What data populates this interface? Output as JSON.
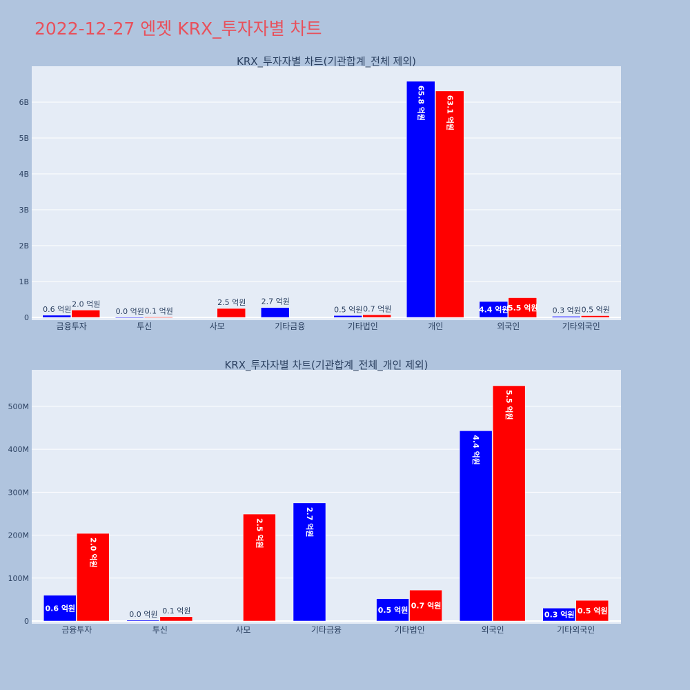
{
  "page_title": "2022-12-27 엔젯 KRX_투자자별 차트",
  "colors": {
    "series_a": "#0000ff",
    "series_b": "#ff0000",
    "plot_bg": "#e5ecf6",
    "page_bg": "#b0c4de",
    "title": "#e8505b"
  },
  "chart_data": [
    {
      "type": "bar",
      "title": "KRX_투자자별 차트(기관합계_전체 제외)",
      "categories": [
        "금융투자",
        "투신",
        "사모",
        "기타금융",
        "기타법인",
        "개인",
        "외국인",
        "기타외국인"
      ],
      "ylim": [
        0,
        7000000000
      ],
      "yticks": [
        0,
        1000000000,
        2000000000,
        3000000000,
        4000000000,
        5000000000,
        6000000000
      ],
      "ytick_labels": [
        "0",
        "1B",
        "2B",
        "3B",
        "4B",
        "5B",
        "6B"
      ],
      "grid": true,
      "series": [
        {
          "values": [
            60000000,
            2000000,
            0,
            275000000,
            52000000,
            6580000000,
            443000000,
            30000000
          ],
          "labels": [
            "0.6 억원",
            "0.0 억원",
            "",
            "2.7 억원",
            "0.5 억원",
            "65.8 억원",
            "4.4 억원",
            "0.3 억원"
          ]
        },
        {
          "values": [
            204000000,
            10000000,
            249000000,
            0,
            72000000,
            6310000000,
            548000000,
            48000000
          ],
          "labels": [
            "2.0 억원",
            "0.1 억원",
            "2.5 억원",
            "",
            "0.7 억원",
            "63.1 억원",
            "5.5 억원",
            "0.5 억원"
          ]
        }
      ]
    },
    {
      "type": "bar",
      "title": "KRX_투자자별 차트(기관합계_전체_개인 제외)",
      "categories": [
        "금융투자",
        "투신",
        "사모",
        "기타금융",
        "기타법인",
        "외국인",
        "기타외국인"
      ],
      "ylim": [
        0,
        585000000
      ],
      "yticks": [
        0,
        100000000,
        200000000,
        300000000,
        400000000,
        500000000
      ],
      "ytick_labels": [
        "0",
        "100M",
        "200M",
        "300M",
        "400M",
        "500M"
      ],
      "grid": true,
      "series": [
        {
          "values": [
            60000000,
            2000000,
            0,
            275000000,
            52000000,
            443000000,
            30000000
          ],
          "labels": [
            "0.6 억원",
            "0.0 억원",
            "",
            "2.7 억원",
            "0.5 억원",
            "4.4 억원",
            "0.3 억원"
          ]
        },
        {
          "values": [
            204000000,
            10000000,
            249000000,
            0,
            72000000,
            548000000,
            48000000
          ],
          "labels": [
            "2.0 억원",
            "0.1 억원",
            "2.5 억원",
            "",
            "0.7 억원",
            "5.5 억원",
            "0.5 억원"
          ]
        }
      ]
    }
  ]
}
